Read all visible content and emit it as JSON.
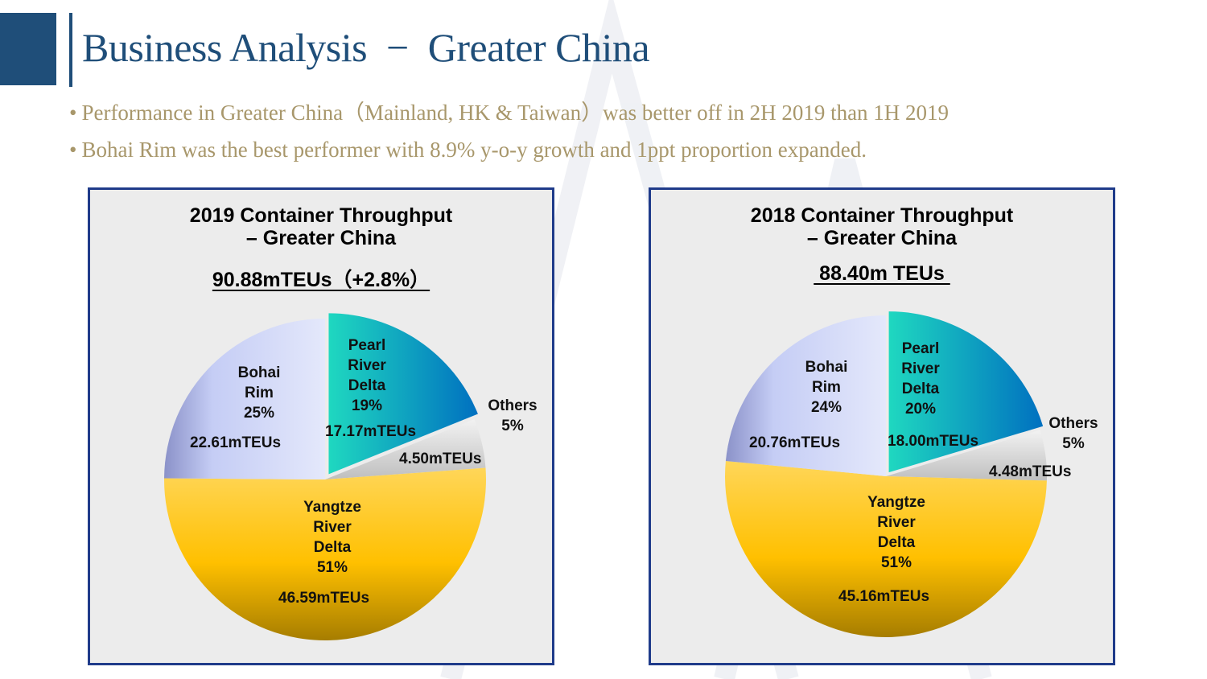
{
  "slide": {
    "title": "Business Analysis  −  Greater China",
    "bullets": [
      "Performance in Greater China（Mainland, HK & Taiwan）was better off in 2H 2019 than 1H 2019",
      "Bohai Rim was the best performer with 8.9% y-o-y growth and 1ppt proportion expanded."
    ],
    "bullet_glyph": "•"
  },
  "chart_data": [
    {
      "type": "pie",
      "title_lines": [
        "2019 Container Throughput",
        "– Greater China"
      ],
      "total_label": "90.88mTEUs（+2.8%）",
      "slices": [
        {
          "name": "Pearl River Delta",
          "label_lines": "Pearl\nRiver\nDelta\n19%",
          "percent": 19,
          "value": 17.17,
          "value_label": "17.17mTEUs",
          "color": "#0070c0"
        },
        {
          "name": "Others",
          "label_lines": "Others\n5%",
          "percent": 5,
          "value": 4.5,
          "value_label": "4.50mTEUs",
          "color": "#d9d9d9"
        },
        {
          "name": "Yangtze River Delta",
          "label_lines": "Yangtze\nRiver\nDelta\n51%",
          "percent": 51,
          "value": 46.59,
          "value_label": "46.59mTEUs",
          "color": "#ffc000"
        },
        {
          "name": "Bohai Rim",
          "label_lines": "Bohai\nRim\n25%",
          "percent": 25,
          "value": 22.61,
          "value_label": "22.61mTEUs",
          "color": "#c5cdf5"
        }
      ]
    },
    {
      "type": "pie",
      "title_lines": [
        "2018 Container Throughput",
        "– Greater China"
      ],
      "total_label": " 88.40m TEUs ",
      "slices": [
        {
          "name": "Pearl River Delta",
          "label_lines": "Pearl\nRiver\nDelta\n20%",
          "percent": 20,
          "value": 18.0,
          "value_label": "18.00mTEUs",
          "color": "#0070c0"
        },
        {
          "name": "Others",
          "label_lines": "Others\n5%",
          "percent": 5,
          "value": 4.48,
          "value_label": "4.48mTEUs",
          "color": "#d9d9d9"
        },
        {
          "name": "Yangtze River Delta",
          "label_lines": "Yangtze\nRiver\nDelta\n51%",
          "percent": 51,
          "value": 45.16,
          "value_label": "45.16mTEUs",
          "color": "#ffc000"
        },
        {
          "name": "Bohai Rim",
          "label_lines": "Bohai\nRim\n24%",
          "percent": 24,
          "value": 20.76,
          "value_label": "20.76mTEUs",
          "color": "#c5cdf5"
        }
      ]
    }
  ]
}
